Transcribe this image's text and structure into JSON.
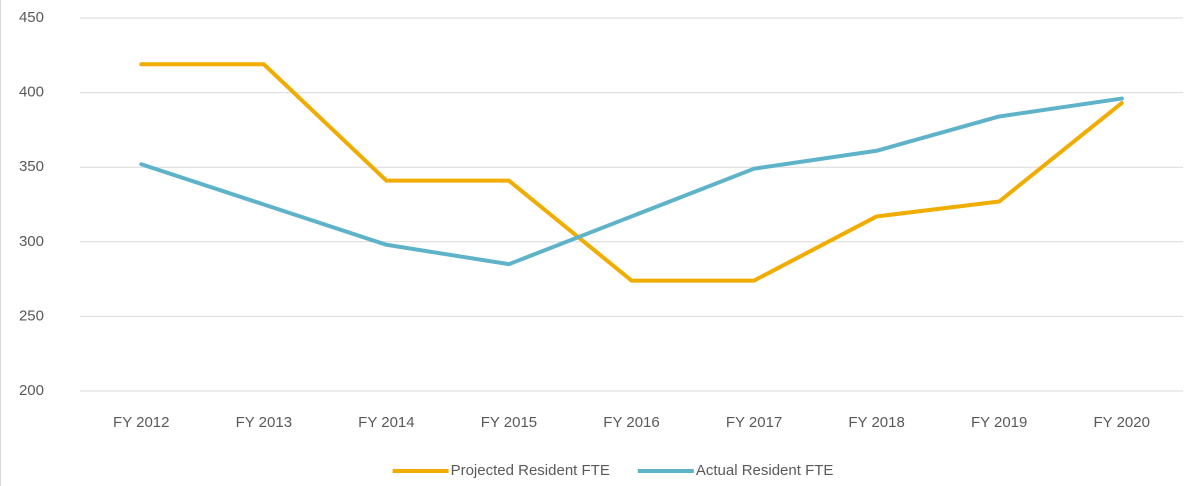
{
  "chart_data": {
    "type": "line",
    "categories": [
      "FY 2012",
      "FY 2013",
      "FY 2014",
      "FY 2015",
      "FY 2016",
      "FY 2017",
      "FY 2018",
      "FY 2019",
      "FY 2020"
    ],
    "series": [
      {
        "name": "Projected Resident FTE",
        "color": "#f0ad00",
        "values": [
          419,
          419,
          341,
          341,
          274,
          274,
          317,
          327,
          393
        ]
      },
      {
        "name": "Actual Resident FTE",
        "color": "#5eb3c9",
        "values": [
          352,
          325,
          298,
          285,
          317,
          349,
          361,
          384,
          396
        ]
      }
    ],
    "ylim": [
      200,
      450
    ],
    "yticks": [
      200,
      250,
      300,
      350,
      400,
      450
    ],
    "grid": true,
    "legend": "bottom"
  }
}
